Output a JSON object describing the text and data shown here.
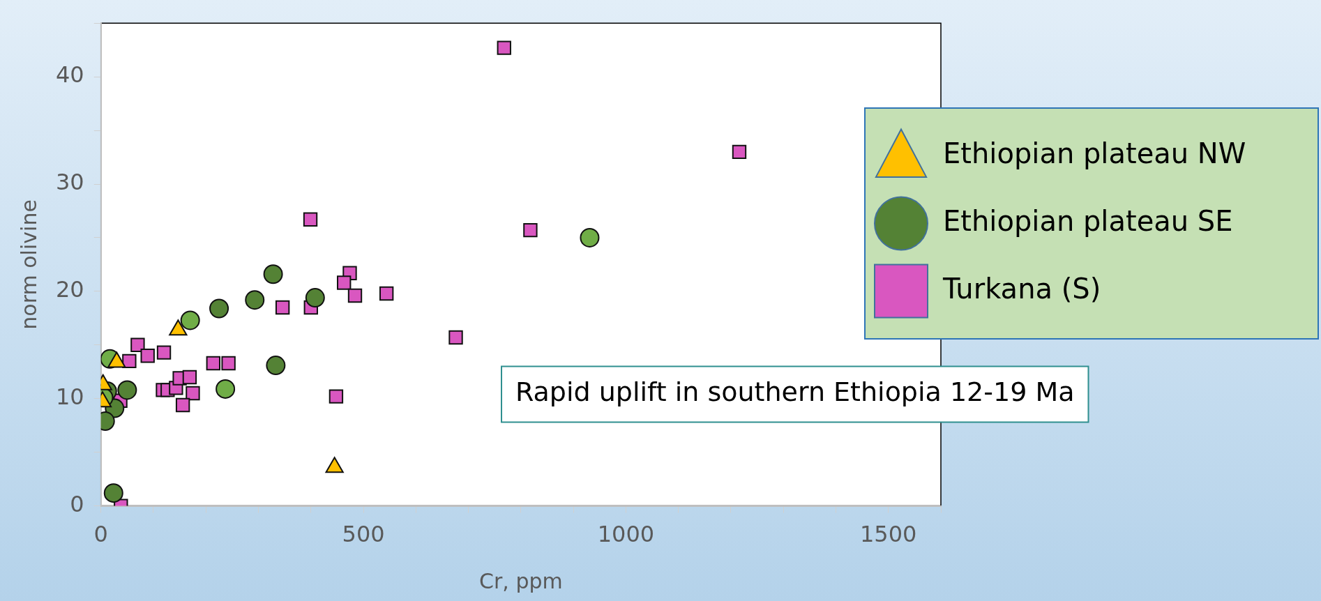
{
  "chart_data": {
    "type": "scatter",
    "xlabel": "Cr, ppm",
    "ylabel": "norm olivine",
    "xlim": [
      0,
      1600
    ],
    "ylim": [
      0,
      45
    ],
    "xticks": [
      0,
      {
        "value": 100,
        "label": null
      },
      {
        "value": 200,
        "label": null
      },
      {
        "value": 300,
        "label": null
      },
      {
        "value": 400,
        "label": null
      },
      500,
      {
        "value": 600,
        "label": null
      },
      {
        "value": 700,
        "label": null
      },
      {
        "value": 800,
        "label": null
      },
      {
        "value": 900,
        "label": null
      },
      1000,
      {
        "value": 1100,
        "label": null
      },
      {
        "value": 1200,
        "label": null
      },
      {
        "value": 1300,
        "label": null
      },
      {
        "value": 1400,
        "label": null
      },
      1500,
      {
        "value": 1600,
        "label": null
      }
    ],
    "yticks": [
      0,
      {
        "value": 5,
        "label": null
      },
      10,
      {
        "value": 15,
        "label": null
      },
      20,
      {
        "value": 25,
        "label": null
      },
      30,
      {
        "value": 35,
        "label": null
      },
      40,
      {
        "value": 45,
        "label": null
      }
    ],
    "grid": false,
    "legend": "right",
    "annotations": [
      "Rapid uplift in southern Ethiopia 12-19 Ma"
    ],
    "series": [
      {
        "name": "Ethiopian plateau NW",
        "color": "#ffc000",
        "marker": "triangle",
        "x": [
          147,
          445,
          30,
          4,
          3
        ],
        "values": [
          16.4,
          3.6,
          13.4,
          11.3,
          9.7
        ]
      },
      {
        "name": "Ethiopian plateau SE",
        "color": "#548235",
        "marker": "circle",
        "x": [
          328,
          225,
          293,
          408,
          333,
          50,
          26,
          8,
          24,
          12,
          931,
          170,
          237,
          17,
          5
        ],
        "values": [
          21.6,
          18.4,
          19.2,
          19.4,
          13.1,
          10.8,
          9.1,
          7.9,
          1.2,
          10.7,
          25.0,
          17.3,
          10.9,
          13.7,
          10.1
        ],
        "colors": [
          "#548235",
          "#548235",
          "#548235",
          "#548235",
          "#548235",
          "#548235",
          "#548235",
          "#548235",
          "#548235",
          "#548235",
          "#70ad47",
          "#70ad47",
          "#70ad47",
          "#70ad47",
          "#70ad47"
        ]
      },
      {
        "name": "Turkana (S)",
        "color": "#d957c0",
        "marker": "square",
        "x": [
          768,
          1216,
          399,
          818,
          474,
          463,
          484,
          544,
          346,
          400,
          676,
          448,
          38,
          70,
          54,
          89,
          120,
          214,
          243,
          118,
          127,
          143,
          150,
          169,
          175,
          156,
          37
        ],
        "values": [
          42.7,
          33.0,
          26.7,
          25.7,
          21.7,
          20.8,
          19.6,
          19.8,
          18.5,
          18.5,
          15.7,
          10.2,
          0,
          15.0,
          13.5,
          14.0,
          14.3,
          13.3,
          13.3,
          10.8,
          10.8,
          11.0,
          11.9,
          12.0,
          10.5,
          9.4,
          9.8
        ]
      }
    ]
  }
}
